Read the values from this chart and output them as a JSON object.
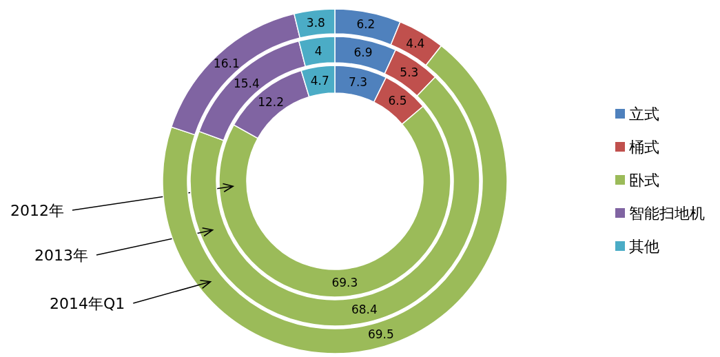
{
  "chart_data": {
    "type": "donut",
    "categories": [
      "立式",
      "桶式",
      "卧式",
      "智能扫地机",
      "其他"
    ],
    "colors": [
      "#4f81bd",
      "#c0504d",
      "#9bbb59",
      "#8064a2",
      "#4bacc6"
    ],
    "series": [
      {
        "name": "2012年",
        "values": [
          7.3,
          6.5,
          69.3,
          12.2,
          4.7
        ]
      },
      {
        "name": "2013年",
        "values": [
          6.9,
          5.3,
          68.4,
          15.4,
          4
        ]
      },
      {
        "name": "2014年Q1",
        "values": [
          6.2,
          4.4,
          69.5,
          16.1,
          3.8
        ]
      }
    ],
    "data_labels": true,
    "legend": "right"
  }
}
